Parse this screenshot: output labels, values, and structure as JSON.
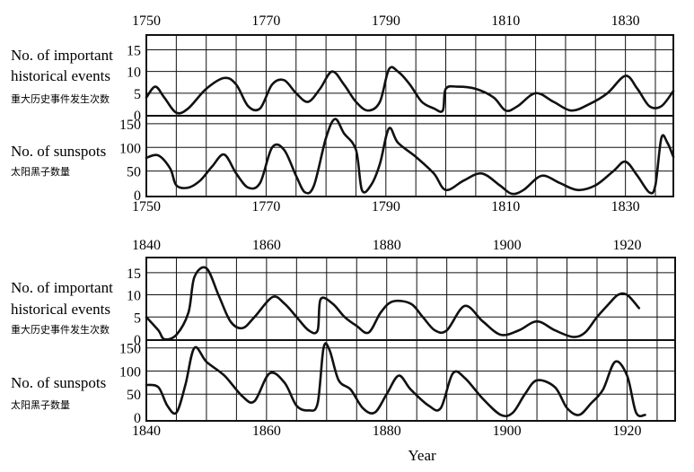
{
  "x_axis_title": "Year",
  "chart_data": [
    {
      "type": "line",
      "panel": "1750-1838",
      "xlim": [
        1750,
        1838
      ],
      "x_ticks": [
        1750,
        1770,
        1790,
        1810,
        1830
      ],
      "series": [
        {
          "name_en": [
            "No. of important",
            "historical events"
          ],
          "name_zh": "重大历史事件发生次数",
          "ylim": [
            0,
            18
          ],
          "y_ticks": [
            0,
            5,
            10,
            15
          ],
          "x": [
            1750,
            1751.5,
            1753,
            1755,
            1757,
            1760,
            1763,
            1765,
            1767,
            1769,
            1771,
            1773,
            1775,
            1777,
            1779,
            1781,
            1783,
            1785,
            1787,
            1789,
            1790.5,
            1792,
            1794,
            1796,
            1798,
            1799.5,
            1800,
            1802,
            1805,
            1808,
            1810,
            1812,
            1815,
            1818,
            1821,
            1824,
            1827,
            1830,
            1832,
            1834,
            1836,
            1838
          ],
          "values": [
            4,
            6.5,
            4,
            0.5,
            1.5,
            6,
            8.5,
            7,
            2,
            1.5,
            7,
            8,
            5,
            3,
            6,
            10,
            7,
            3,
            1,
            3,
            10.5,
            10,
            7,
            3,
            1.5,
            1,
            6,
            6.5,
            6,
            4,
            1,
            2,
            5,
            3,
            1,
            2.5,
            5,
            9,
            6,
            2,
            2,
            5.5
          ]
        },
        {
          "name_en": [
            "No. of sunspots"
          ],
          "name_zh": "太阳黑子数量",
          "ylim": [
            0,
            165
          ],
          "y_ticks": [
            0,
            50,
            100,
            150
          ],
          "x": [
            1750,
            1752,
            1754,
            1755,
            1757,
            1759,
            1761,
            1763,
            1765,
            1767,
            1769,
            1771,
            1773,
            1775,
            1776.5,
            1778,
            1780,
            1781.5,
            1783,
            1785,
            1786,
            1787.5,
            1789,
            1790.5,
            1792,
            1795,
            1798,
            1800,
            1803,
            1806,
            1809,
            1811,
            1813,
            1816,
            1819,
            1822,
            1825,
            1828,
            1830,
            1832,
            1834,
            1835,
            1836,
            1837,
            1838
          ],
          "values": [
            78,
            83,
            55,
            20,
            15,
            30,
            60,
            85,
            45,
            15,
            25,
            100,
            95,
            40,
            5,
            20,
            120,
            160,
            130,
            95,
            10,
            20,
            65,
            140,
            110,
            80,
            45,
            10,
            30,
            45,
            20,
            2,
            10,
            40,
            25,
            10,
            20,
            50,
            70,
            40,
            5,
            20,
            120,
            110,
            80
          ]
        }
      ]
    },
    {
      "type": "line",
      "panel": "1840-1928",
      "xlim": [
        1840,
        1928
      ],
      "x_ticks": [
        1840,
        1860,
        1880,
        1900,
        1920
      ],
      "series": [
        {
          "name_en": [
            "No. of important",
            "historical events"
          ],
          "name_zh": "重大历史事件发生次数",
          "ylim": [
            0,
            18
          ],
          "y_ticks": [
            0,
            5,
            10,
            15
          ],
          "x": [
            1840,
            1842,
            1843,
            1845,
            1847,
            1848,
            1850,
            1852,
            1854,
            1856,
            1858,
            1861,
            1863,
            1865,
            1867,
            1868.5,
            1869,
            1871,
            1873,
            1875,
            1877,
            1879,
            1881,
            1884,
            1886,
            1888,
            1890,
            1893,
            1896,
            1899,
            1902,
            1905,
            1908,
            1911,
            1913,
            1915,
            1917,
            1918.5,
            1920,
            1922
          ],
          "values": [
            5,
            2,
            0,
            1,
            6,
            14,
            16,
            10,
            4,
            2.5,
            5,
            9.5,
            8,
            5,
            2,
            2,
            9,
            8,
            5,
            3,
            1.5,
            6,
            8.5,
            8,
            5,
            2,
            2,
            7.5,
            4,
            1,
            2,
            4,
            2,
            0.5,
            1.5,
            5,
            8,
            10,
            10,
            7
          ]
        },
        {
          "name_en": [
            "No. of sunspots"
          ],
          "name_zh": "太阳黑子数量",
          "ylim": [
            0,
            165
          ],
          "y_ticks": [
            0,
            50,
            100,
            150
          ],
          "x": [
            1840,
            1842,
            1843.5,
            1845,
            1846.5,
            1848,
            1850,
            1853,
            1856,
            1858,
            1860.5,
            1863,
            1865,
            1867,
            1868.5,
            1869.5,
            1870.5,
            1872,
            1874,
            1876,
            1878,
            1880,
            1882,
            1884,
            1887,
            1889,
            1891,
            1893,
            1896,
            1899,
            1901,
            1903,
            1905,
            1908,
            1910,
            1912,
            1914,
            1916,
            1918,
            1920,
            1921.5,
            1923
          ],
          "values": [
            70,
            65,
            25,
            10,
            70,
            150,
            120,
            90,
            45,
            35,
            95,
            75,
            25,
            15,
            30,
            150,
            145,
            80,
            60,
            20,
            10,
            50,
            90,
            60,
            25,
            20,
            95,
            85,
            40,
            5,
            10,
            50,
            80,
            65,
            20,
            5,
            30,
            60,
            120,
            90,
            10,
            5
          ]
        }
      ]
    }
  ]
}
